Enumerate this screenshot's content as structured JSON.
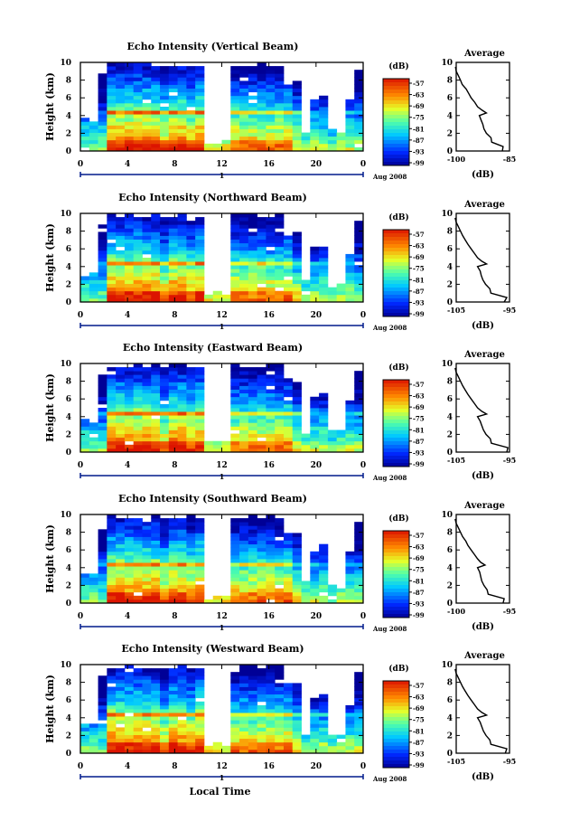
{
  "xlabel_bottom": "Local Time",
  "date_label": "Aug 2008",
  "day_marker": "1",
  "cbar_units": "(dB)",
  "chart_data": [
    {
      "type": "heatmap",
      "title": "Echo Intensity (Vertical Beam)",
      "ylabel": "Height (km)",
      "xlim": [
        0,
        24
      ],
      "ylim": [
        0,
        10
      ],
      "xticks": [
        "0",
        "4",
        "8",
        "12",
        "16",
        "20",
        "0"
      ],
      "yticks": [
        "0",
        "2",
        "4",
        "6",
        "8",
        "10"
      ],
      "colorbar_ticks": [
        "-57",
        "-63",
        "-69",
        "-75",
        "-81",
        "-87",
        "-93",
        "-99"
      ],
      "average_profile": {
        "title": "Average",
        "xlabel": "(dB)",
        "xlim": [
          -100,
          -85
        ],
        "xticks": [
          "-100",
          "-85"
        ],
        "height_km": [
          0,
          0.5,
          1,
          1.5,
          2,
          2.5,
          3,
          3.5,
          4,
          4.3,
          4.6,
          5,
          5.5,
          6,
          6.5,
          7,
          7.5,
          8,
          8.5,
          9,
          9.5
        ],
        "db": [
          -87,
          -86.8,
          -90,
          -90.2,
          -91.5,
          -92.2,
          -92.5,
          -93,
          -93.5,
          -91.5,
          -92.7,
          -94,
          -94.8,
          -95.8,
          -96.5,
          -97.2,
          -98.3,
          -98.8,
          -99.4,
          -100,
          -100.2
        ]
      }
    },
    {
      "type": "heatmap",
      "title": "Echo Intensity (Northward Beam)",
      "ylabel": "Height (km)",
      "xlim": [
        0,
        24
      ],
      "ylim": [
        0,
        10
      ],
      "xticks": [
        "0",
        "4",
        "8",
        "12",
        "16",
        "20",
        "0"
      ],
      "yticks": [
        "0",
        "2",
        "4",
        "6",
        "8",
        "10"
      ],
      "colorbar_ticks": [
        "-57",
        "-63",
        "-69",
        "-75",
        "-81",
        "-87",
        "-93",
        "-99"
      ],
      "average_profile": {
        "title": "Average",
        "xlabel": "(dB)",
        "xlim": [
          -105,
          -95
        ],
        "xticks": [
          "-105",
          "-95"
        ],
        "height_km": [
          0,
          0.5,
          1,
          1.5,
          2,
          2.5,
          3,
          3.5,
          4,
          4.3,
          4.6,
          5,
          5.5,
          6,
          6.5,
          7,
          7.5,
          8,
          8.5,
          9,
          9.5
        ],
        "db": [
          -96,
          -95.5,
          -98.5,
          -98.7,
          -99.5,
          -100,
          -100.3,
          -100.5,
          -101,
          -99.3,
          -100.2,
          -101,
          -101.6,
          -102.2,
          -102.8,
          -103.3,
          -103.8,
          -104.2,
          -104.6,
          -105,
          -105.2
        ]
      }
    },
    {
      "type": "heatmap",
      "title": "Echo Intensity (Eastward Beam)",
      "ylabel": "Height (km)",
      "xlim": [
        0,
        24
      ],
      "ylim": [
        0,
        10
      ],
      "xticks": [
        "0",
        "4",
        "8",
        "12",
        "16",
        "20",
        "0"
      ],
      "yticks": [
        "0",
        "2",
        "4",
        "6",
        "8",
        "10"
      ],
      "colorbar_ticks": [
        "-57",
        "-63",
        "-69",
        "-75",
        "-81",
        "-87",
        "-93",
        "-99"
      ],
      "average_profile": {
        "title": "Average",
        "xlabel": "(dB)",
        "xlim": [
          -105,
          -95
        ],
        "xticks": [
          "-105",
          "-95"
        ],
        "height_km": [
          0,
          0.5,
          1,
          1.5,
          2,
          2.5,
          3,
          3.5,
          4,
          4.3,
          4.6,
          5,
          5.5,
          6,
          6.5,
          7,
          7.5,
          8,
          8.5,
          9,
          9.5
        ],
        "db": [
          -95.5,
          -95.3,
          -98.4,
          -98.6,
          -99.4,
          -99.9,
          -100.2,
          -100.5,
          -101,
          -99.3,
          -100.2,
          -101,
          -101.6,
          -102.2,
          -102.8,
          -103.3,
          -103.8,
          -104.2,
          -104.6,
          -105,
          -105.2
        ]
      }
    },
    {
      "type": "heatmap",
      "title": "Echo Intensity (Southward Beam)",
      "ylabel": "Height (km)",
      "xlim": [
        0,
        24
      ],
      "ylim": [
        0,
        10
      ],
      "xticks": [
        "0",
        "4",
        "8",
        "12",
        "16",
        "20",
        "0"
      ],
      "yticks": [
        "0",
        "2",
        "4",
        "6",
        "8",
        "10"
      ],
      "colorbar_ticks": [
        "-57",
        "-63",
        "-69",
        "-75",
        "-81",
        "-87",
        "-93",
        "-99"
      ],
      "average_profile": {
        "title": "Average",
        "xlabel": "(dB)",
        "xlim": [
          -100,
          -95
        ],
        "xticks": [
          "-100",
          "-95"
        ],
        "height_km": [
          0,
          0.5,
          1,
          1.5,
          2,
          2.5,
          3,
          3.5,
          4,
          4.3,
          4.6,
          5,
          5.5,
          6,
          6.5,
          7,
          7.5,
          8,
          8.5,
          9,
          9.5
        ],
        "db": [
          -95.6,
          -95.5,
          -97,
          -97.1,
          -97.4,
          -97.6,
          -97.7,
          -97.8,
          -98,
          -97.3,
          -97.7,
          -98,
          -98.3,
          -98.6,
          -98.9,
          -99.1,
          -99.4,
          -99.6,
          -99.8,
          -100,
          -100.1
        ]
      }
    },
    {
      "type": "heatmap",
      "title": "Echo Intensity (Westward Beam)",
      "ylabel": "Height (km)",
      "xlim": [
        0,
        24
      ],
      "ylim": [
        0,
        10
      ],
      "xticks": [
        "0",
        "4",
        "8",
        "12",
        "16",
        "20",
        "0"
      ],
      "yticks": [
        "0",
        "2",
        "4",
        "6",
        "8",
        "10"
      ],
      "colorbar_ticks": [
        "-57",
        "-63",
        "-69",
        "-75",
        "-81",
        "-87",
        "-93",
        "-99"
      ],
      "average_profile": {
        "title": "Average",
        "xlabel": "(dB)",
        "xlim": [
          -105,
          -95
        ],
        "xticks": [
          "-105",
          "-95"
        ],
        "height_km": [
          0,
          0.5,
          1,
          1.5,
          2,
          2.5,
          3,
          3.5,
          4,
          4.3,
          4.6,
          5,
          5.5,
          6,
          6.5,
          7,
          7.5,
          8,
          8.5,
          9,
          9.5
        ],
        "db": [
          -95.8,
          -95.5,
          -98.5,
          -98.7,
          -99.4,
          -99.9,
          -100.2,
          -100.5,
          -101,
          -99.3,
          -100.2,
          -101,
          -101.6,
          -102.2,
          -102.8,
          -103.3,
          -103.8,
          -104.2,
          -104.6,
          -105,
          -105.2
        ]
      }
    }
  ]
}
